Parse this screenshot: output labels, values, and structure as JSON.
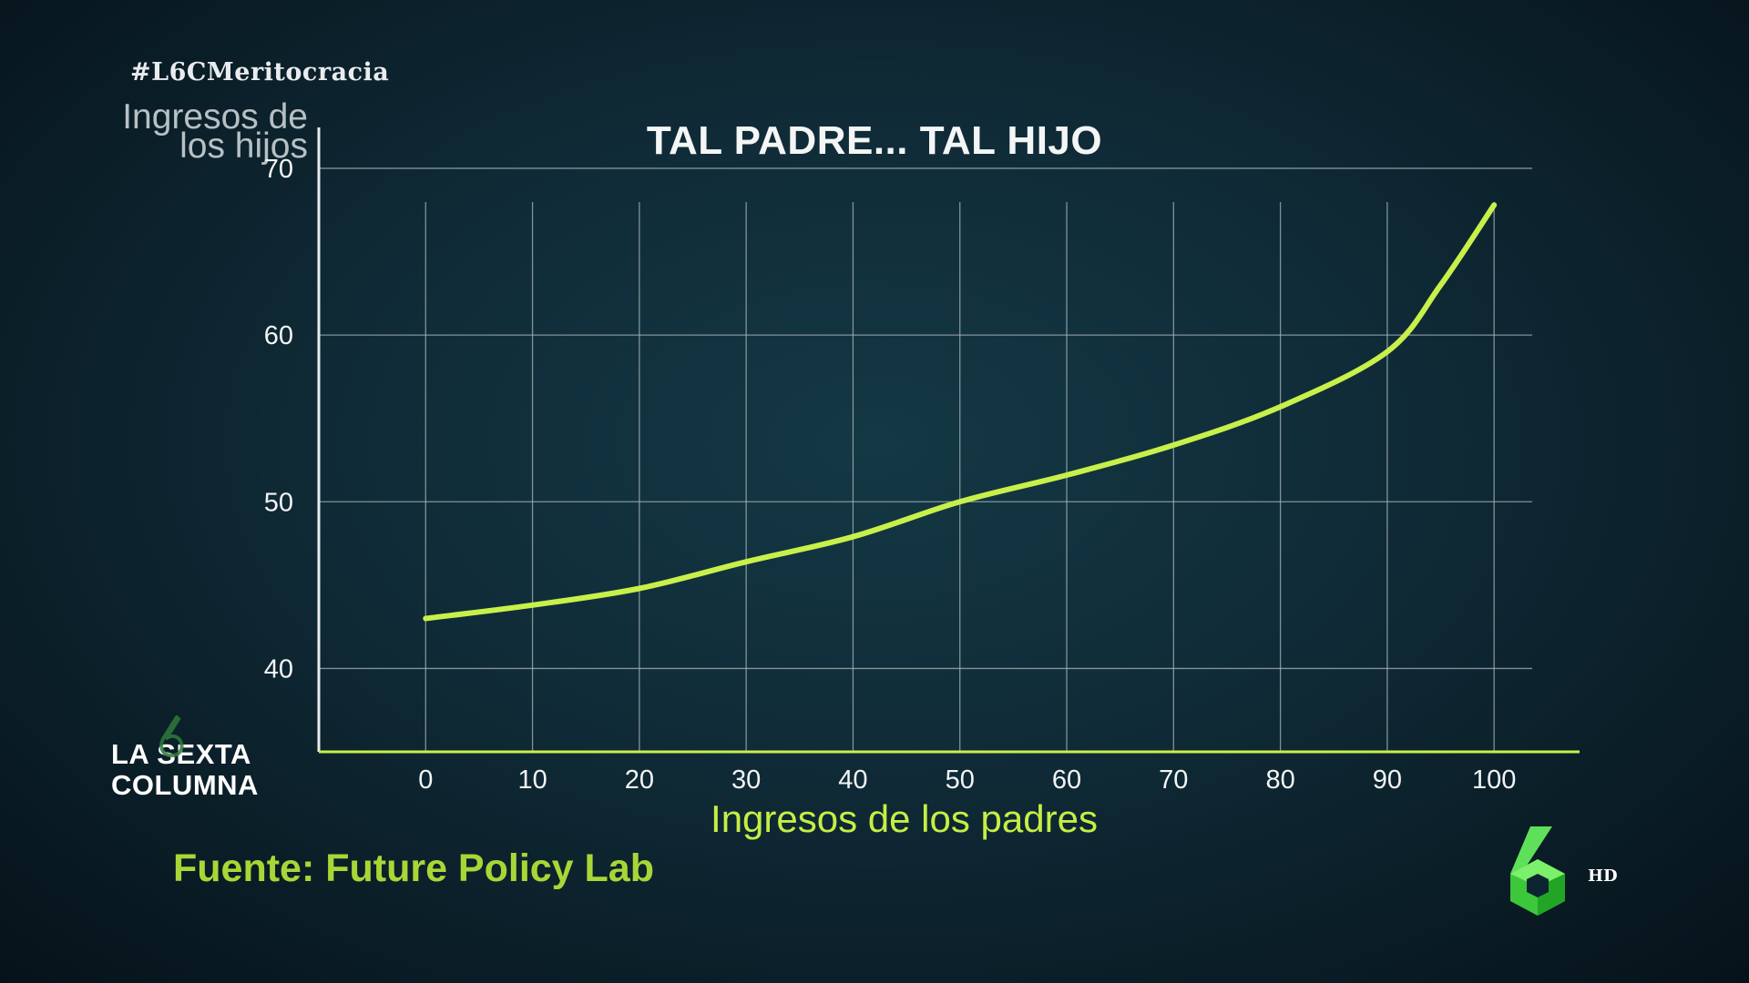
{
  "hashtag": "#L6CMeritocracia",
  "brand": {
    "line1": "LA SEXTA",
    "line2": "COLUMNA"
  },
  "source": "Fuente: Future Policy Lab",
  "channel_badge": "HD",
  "colors": {
    "line": "#c8f04a",
    "axis": "#c8f04a",
    "grid": "#a8b4b8",
    "source_text": "#a9d637"
  },
  "chart_data": {
    "type": "line",
    "title": "TAL PADRE... TAL HIJO",
    "ylabel_lines": [
      "Ingresos de",
      "los hijos"
    ],
    "xlabel": "Ingresos de los padres",
    "x": [
      0,
      10,
      20,
      30,
      40,
      50,
      60,
      70,
      80,
      90,
      95,
      100
    ],
    "series": [
      {
        "values": [
          43.0,
          43.8,
          44.8,
          46.4,
          47.9,
          50.0,
          51.6,
          53.4,
          55.7,
          59.0,
          63.0,
          67.8
        ]
      }
    ],
    "xticks": [
      "0",
      "10",
      "20",
      "30",
      "40",
      "50",
      "60",
      "70",
      "80",
      "90",
      "100"
    ],
    "yticks": [
      "40",
      "50",
      "60",
      "70"
    ],
    "xlim": [
      -10,
      108
    ],
    "ylim": [
      35,
      73
    ],
    "grid": true
  }
}
